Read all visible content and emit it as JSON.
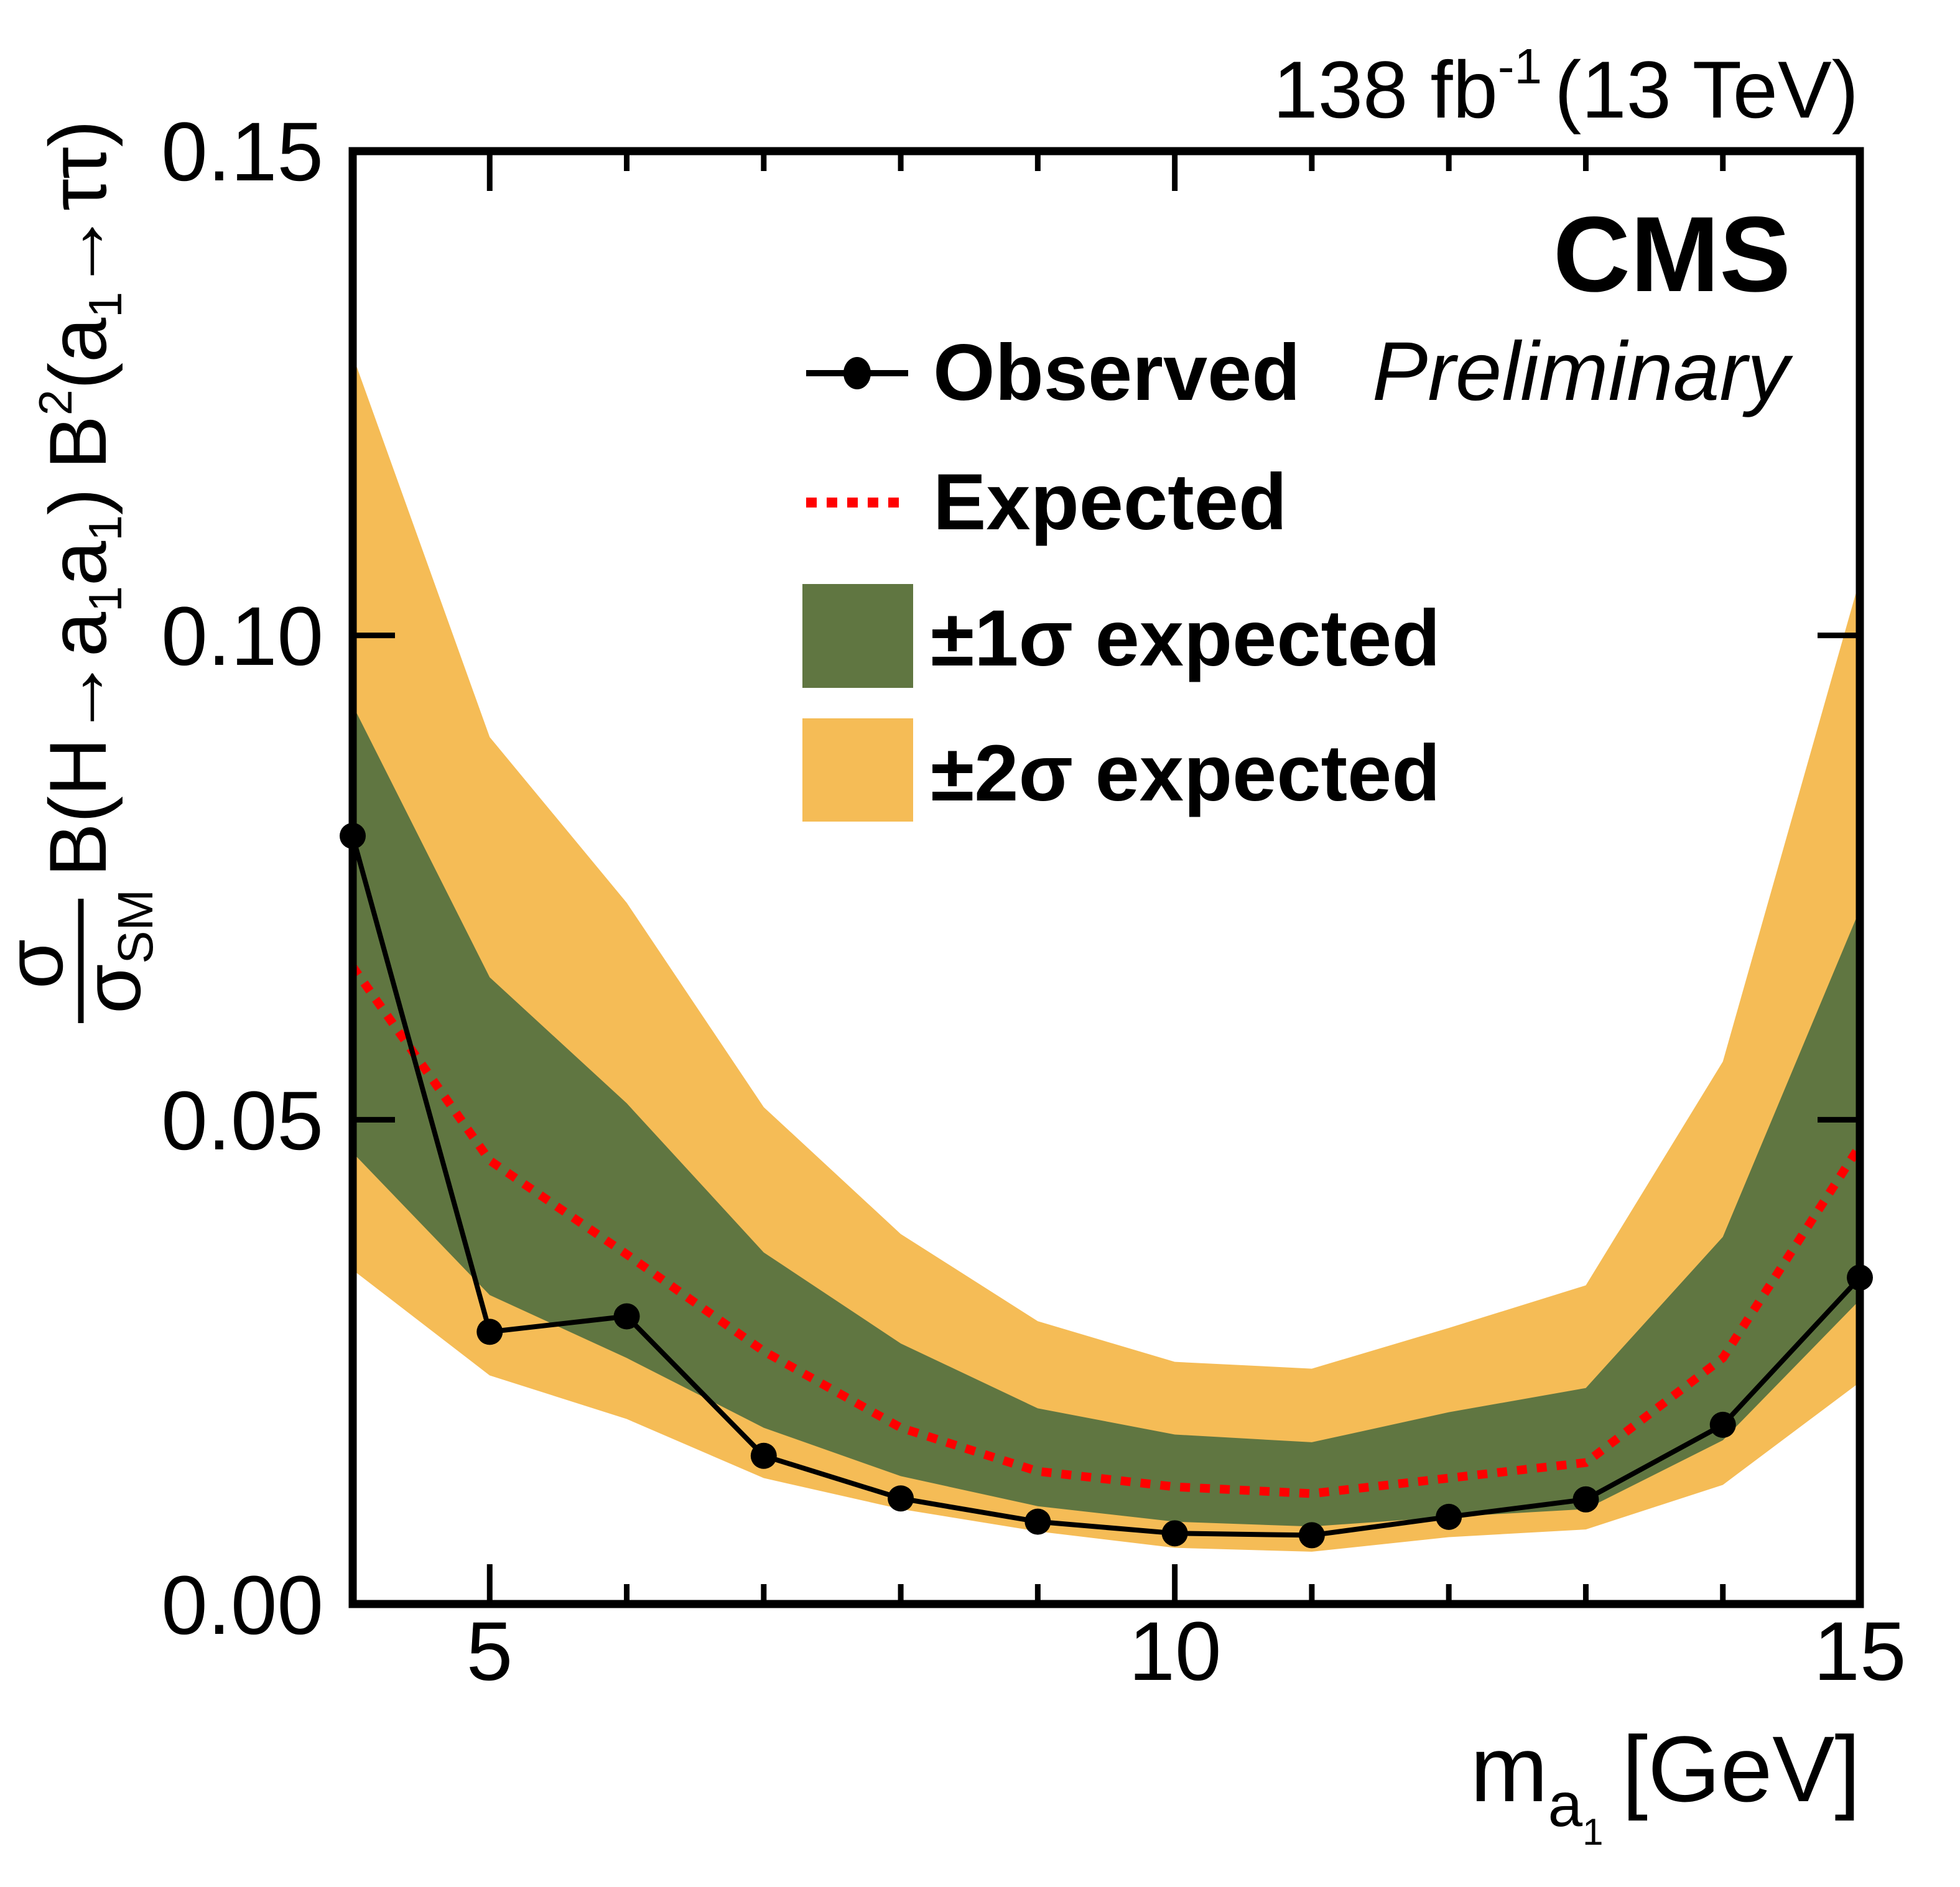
{
  "header": {
    "lumi_value": "138 fb",
    "lumi_exponent": "-1",
    "energy": "(13 TeV)",
    "experiment": "CMS",
    "status": "Preliminary"
  },
  "legend": {
    "observed": "Observed",
    "expected": "Expected",
    "one_sigma": "±1σ expected",
    "two_sigma": "±2σ expected"
  },
  "colors": {
    "observed": "#000000",
    "expected": "#ff0000",
    "one_sigma_band": "#607641",
    "two_sigma_band": "#f5bc56"
  },
  "chart_data": {
    "type": "line",
    "title": "",
    "xlabel": "m_a1 [GeV]",
    "xlabel_main": "m",
    "xlabel_sub": "a",
    "xlabel_subsub": "1",
    "xlabel_unit": "[GeV]",
    "ylabel": "σ/σ_SM B(H→a1a1) B²(a1→ττ)",
    "ylabel_parts": {
      "num": "σ",
      "den": "σ",
      "den_sub": "SM",
      "b1": "B(H→a",
      "b1_sub1": "1",
      "b1_mid": "a",
      "b1_sub2": "1",
      "b1_close": ")",
      "b2": "B",
      "b2_sup": "2",
      "b2_open": "(a",
      "b2_sub": "1",
      "b2_rest": "→ττ)"
    },
    "xlim": [
      4,
      15
    ],
    "ylim": [
      0.0,
      0.15
    ],
    "xticks_major": [
      5,
      10,
      15
    ],
    "xtick_labels": [
      "5",
      "10",
      "15"
    ],
    "xticks_minor": [
      6,
      7,
      8,
      9,
      11,
      12,
      13,
      14
    ],
    "yticks": [
      0.0,
      0.05,
      0.1,
      0.15
    ],
    "ytick_labels": [
      "0.00",
      "0.05",
      "0.10",
      "0.15"
    ],
    "grid": false,
    "legend_position": "top-center",
    "x": [
      4,
      5,
      6,
      7,
      8,
      9,
      10,
      11,
      12,
      13,
      14,
      15
    ],
    "series": [
      {
        "name": "Observed",
        "style": "line-markers",
        "values": [
          0.0793,
          0.0281,
          0.0297,
          0.0153,
          0.0109,
          0.0085,
          0.0073,
          0.0071,
          0.009,
          0.0108,
          0.0185,
          0.0337
        ]
      },
      {
        "name": "Expected",
        "style": "dotted",
        "values": [
          0.0658,
          0.0458,
          0.0361,
          0.0261,
          0.0182,
          0.0137,
          0.0121,
          0.0114,
          0.013,
          0.0146,
          0.0254,
          0.0473
        ]
      },
      {
        "name": "±1σ expected",
        "style": "band",
        "upper": [
          0.0928,
          0.0647,
          0.0517,
          0.0363,
          0.0269,
          0.0202,
          0.0175,
          0.0167,
          0.0198,
          0.0223,
          0.0379,
          0.0717
        ],
        "lower": [
          0.0466,
          0.0319,
          0.0254,
          0.0182,
          0.0132,
          0.0101,
          0.0085,
          0.008,
          0.009,
          0.0098,
          0.0169,
          0.0314
        ]
      },
      {
        "name": "±2σ expected",
        "style": "band",
        "upper": [
          0.1289,
          0.0895,
          0.0724,
          0.0513,
          0.0382,
          0.0292,
          0.025,
          0.0243,
          0.0285,
          0.0329,
          0.056,
          0.1058
        ],
        "lower": [
          0.0345,
          0.0236,
          0.0191,
          0.013,
          0.0098,
          0.0075,
          0.0058,
          0.0054,
          0.0069,
          0.0077,
          0.0123,
          0.0229
        ]
      }
    ]
  }
}
